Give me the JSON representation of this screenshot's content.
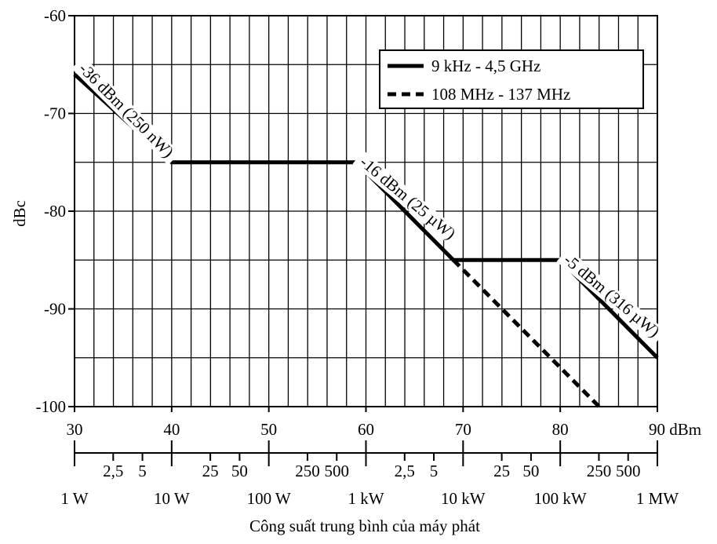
{
  "chart_data": {
    "type": "line",
    "xlabel": "Công suất trung bình của máy phát",
    "ylabel": "dBc",
    "x_unit": "dBm",
    "xlim": [
      30,
      90
    ],
    "ylim": [
      -100,
      -60
    ],
    "grid": true,
    "legend_position": "top-right",
    "x_ticks": [
      {
        "value": 30,
        "label": "30"
      },
      {
        "value": 40,
        "label": "40"
      },
      {
        "value": 50,
        "label": "50"
      },
      {
        "value": 60,
        "label": "60"
      },
      {
        "value": 70,
        "label": "70"
      },
      {
        "value": 80,
        "label": "80"
      },
      {
        "value": 90,
        "label": "90 dBm"
      }
    ],
    "y_ticks": [
      {
        "value": -60,
        "label": "-60"
      },
      {
        "value": -70,
        "label": "-70"
      },
      {
        "value": -80,
        "label": "-80"
      },
      {
        "value": -90,
        "label": "-90"
      },
      {
        "value": -100,
        "label": "-100"
      }
    ],
    "power_ticks_minor": [
      {
        "value": 33.98,
        "label": "2,5"
      },
      {
        "value": 36.99,
        "label": "5"
      },
      {
        "value": 43.98,
        "label": "25"
      },
      {
        "value": 46.99,
        "label": "50"
      },
      {
        "value": 53.98,
        "label": "250"
      },
      {
        "value": 56.99,
        "label": "500"
      },
      {
        "value": 63.98,
        "label": "2,5"
      },
      {
        "value": 66.99,
        "label": "5"
      },
      {
        "value": 73.98,
        "label": "25"
      },
      {
        "value": 76.99,
        "label": "50"
      },
      {
        "value": 83.98,
        "label": "250"
      },
      {
        "value": 86.99,
        "label": "500"
      }
    ],
    "power_ticks_major": [
      {
        "value": 30,
        "label": "1 W"
      },
      {
        "value": 40,
        "label": "10 W"
      },
      {
        "value": 50,
        "label": "100 W"
      },
      {
        "value": 60,
        "label": "1 kW"
      },
      {
        "value": 70,
        "label": "10 kW"
      },
      {
        "value": 80,
        "label": "100 kW"
      },
      {
        "value": 90,
        "label": "1 MW"
      }
    ],
    "series": [
      {
        "name": "9 kHz - 4,5 GHz",
        "style": "solid",
        "color": "#000000",
        "points": [
          [
            30,
            -66
          ],
          [
            40,
            -75
          ],
          [
            59,
            -75
          ],
          [
            69,
            -85
          ],
          [
            80,
            -85
          ],
          [
            90,
            -95
          ]
        ]
      },
      {
        "name": "108 MHz - 137 MHz",
        "style": "dashed",
        "color": "#000000",
        "points": [
          [
            69,
            -85
          ],
          [
            84,
            -100
          ]
        ]
      }
    ],
    "annotations": [
      {
        "text": "-36 dBm (250 nW)",
        "x": 35,
        "y": -70
      },
      {
        "text": "-16 dBm (25 µW)",
        "x": 64,
        "y": -79
      },
      {
        "text": "-5 dBm (316 µW)",
        "x": 85,
        "y": -89
      }
    ]
  }
}
